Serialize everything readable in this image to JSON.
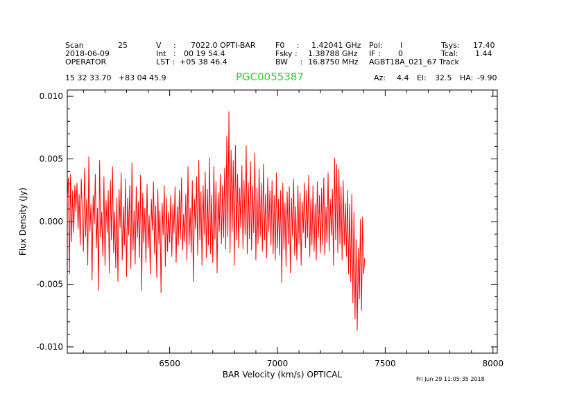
{
  "header": {
    "row1": {
      "scan_label": "Scan",
      "scan_value": "25",
      "v_label": "V     :",
      "v_value": "7022.0 OPTI-BAR",
      "f0_label": "F0     :",
      "f0_value": "1.42041 GHz",
      "pol_label": "Pol:",
      "pol_value": "I",
      "tsys_label": "Tsys:",
      "tsys_value": "17.40"
    },
    "row2": {
      "date": "2018-06-09",
      "int_label": "Int   :",
      "int_value": "00 19 54.4",
      "fsky_label": "Fsky :",
      "fsky_value": "1.38788 GHz",
      "if_label": "IF :",
      "if_value": "0",
      "tcal_label": "Tcal:",
      "tcal_value": "1.44"
    },
    "row3": {
      "observer": "OPERATOR",
      "lst_label": "LST :",
      "lst_value": "+05 38 46.4",
      "bw_label": "BW     :",
      "bw_value": "16.8750 MHz",
      "project": "AGBT18A_021_67 Track"
    },
    "row4": {
      "coords": "15 32 33.70   +83 04 45.9",
      "source": "PGC0055387",
      "az_label": "Az:",
      "az_value": "4.4",
      "el_label": "El:",
      "el_value": "32.5",
      "ha_label": "HA:",
      "ha_value": "-9.90"
    }
  },
  "timestamp": "Fri Jun 29 11:05:35 2018",
  "colors": {
    "trace": "#ff0000",
    "source": "#27d127",
    "axes": "#000000"
  },
  "chart_data": {
    "type": "line",
    "title": "",
    "xlabel": "BAR Velocity (km/s) OPTICAL",
    "ylabel": "Flux Density (Jy)",
    "xlim": [
      6025,
      8020
    ],
    "ylim": [
      -0.0105,
      0.0105
    ],
    "x_ticks": [
      6500,
      7000,
      7500,
      8000
    ],
    "x_tick_labels": [
      "6500",
      "7000",
      "7500",
      "8000"
    ],
    "y_ticks": [
      0.01,
      0.005,
      0.0,
      -0.005,
      -0.01
    ],
    "y_tick_labels": [
      "0.010",
      "0.005",
      "0.000",
      "-0.005",
      "-0.010"
    ],
    "series": [
      {
        "name": "PGC0055387",
        "x_start": 6025,
        "x_step": 5,
        "values": [
          0.0016,
          0.0035,
          -0.0042,
          0.0038,
          -0.0016,
          0.0025,
          -0.0009,
          0.0029,
          0.0008,
          0.0031,
          -0.0006,
          0.0022,
          -0.0019,
          0.0034,
          0.0005,
          -0.0024,
          0.0043,
          -0.0012,
          0.0018,
          -0.0035,
          0.0052,
          -0.0008,
          0.0014,
          -0.0047,
          0.0021,
          -0.0002,
          0.0038,
          -0.0021,
          0.0011,
          -0.0055,
          0.0049,
          -0.0013,
          0.0008,
          -0.0028,
          0.0036,
          -0.0035,
          0.0017,
          -0.0009,
          0.0025,
          -0.0041,
          0.0033,
          -0.0015,
          0.0044,
          -0.0025,
          0.0008,
          -0.0037,
          0.0019,
          -0.0048,
          0.0026,
          -0.0005,
          0.0039,
          -0.0031,
          0.0012,
          -0.0019,
          0.0034,
          -0.0044,
          0.0019,
          -0.0011,
          0.0029,
          -0.0038,
          0.0047,
          -0.0023,
          0.0009,
          -0.0034,
          0.0028,
          -0.0013,
          0.0016,
          -0.0029,
          0.0037,
          -0.0055,
          0.0023,
          -0.0017,
          0.0011,
          -0.0033,
          0.003,
          -0.0021,
          0.0005,
          -0.0042,
          0.0018,
          -0.0007,
          0.0032,
          -0.0026,
          0.0013,
          -0.0045,
          0.0026,
          -0.0018,
          0.0009,
          -0.0057,
          0.0015,
          -0.0011,
          0.0029,
          -0.0036,
          0.0019,
          -0.0024,
          0.0008,
          -0.0017,
          0.0021,
          -0.0028,
          0.0014,
          -0.0009,
          0.0028,
          -0.0033,
          0.0012,
          -0.0019,
          0.0025,
          -0.0014,
          0.0035,
          -0.0023,
          0.0006,
          -0.0016,
          0.0022,
          -0.0031,
          0.0044,
          -0.0019,
          0.0011,
          -0.0025,
          0.0033,
          -0.0048,
          0.0018,
          -0.0006,
          0.0036,
          -0.0027,
          0.0049,
          -0.0015,
          0.0024,
          -0.0035,
          0.0029,
          -0.0011,
          0.004,
          -0.0029,
          0.0026,
          -0.0019,
          0.0051,
          -0.0026,
          0.0021,
          -0.0033,
          0.0044,
          -0.0014,
          0.0032,
          -0.0041,
          0.0023,
          -0.0008,
          0.0038,
          -0.0018,
          0.0029,
          -0.0013,
          0.0043,
          -0.0022,
          0.0068,
          -0.0012,
          0.0088,
          -0.0025,
          0.0057,
          -0.0008,
          0.0049,
          -0.0035,
          0.0061,
          -0.0015,
          0.0038,
          -0.0021,
          0.0027,
          -0.0005,
          0.0045,
          -0.0022,
          0.0033,
          -0.0011,
          0.0061,
          -0.0026,
          0.0031,
          -0.0014,
          0.0048,
          -0.0023,
          0.0029,
          -0.0009,
          0.0055,
          -0.0031,
          0.0027,
          -0.0018,
          0.0042,
          -0.0012,
          0.0031,
          -0.0024,
          0.0046,
          -0.0015,
          0.0022,
          -0.0029,
          0.0035,
          -0.0008,
          0.0025,
          -0.0019,
          0.0033,
          -0.0026,
          0.0021,
          -0.0031,
          0.0039,
          -0.0021,
          0.0018,
          -0.0027,
          0.0025,
          -0.0049,
          0.0031,
          -0.0022,
          0.0015,
          -0.0036,
          0.0024,
          -0.0018,
          0.0028,
          -0.0041,
          0.0019,
          -0.0012,
          0.0034,
          -0.0027,
          0.0012,
          -0.0031,
          0.0029,
          -0.0018,
          0.0023,
          -0.0035,
          0.0016,
          -0.0009,
          0.0031,
          -0.0021,
          0.0025,
          -0.0013,
          0.0037,
          -0.0028,
          0.0018,
          -0.0019,
          0.0029,
          -0.0024,
          0.0014,
          -0.0031,
          0.0032,
          -0.0013,
          0.0021,
          -0.0025,
          0.0027,
          -0.0019,
          0.0035,
          -0.0027,
          0.0012,
          -0.0017,
          0.0039,
          -0.0024,
          0.0018,
          -0.0011,
          0.0026,
          -0.0035,
          0.0051,
          -0.0015,
          0.0046,
          -0.0025,
          0.0042,
          -0.0018,
          0.0028,
          -0.0031,
          0.0033,
          -0.0019,
          0.0015,
          -0.0028,
          0.0025,
          -0.0042,
          0.0014,
          -0.0048,
          0.0022,
          -0.0065,
          0.0008,
          -0.0078,
          -0.0014,
          -0.0087,
          -0.0021,
          -0.0062,
          0.0002,
          -0.0071,
          0.0004,
          -0.0042,
          -0.0029
        ]
      }
    ]
  }
}
